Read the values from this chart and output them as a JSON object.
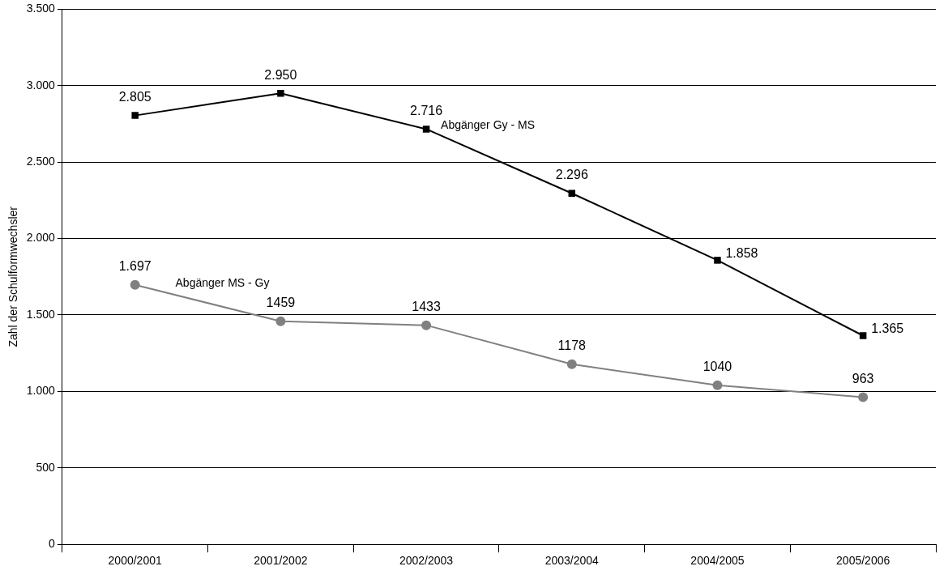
{
  "chart_data": {
    "type": "line",
    "ylabel": "Zahl der Schulformwechsler",
    "categories": [
      "2000/2001",
      "2001/2002",
      "2002/2003",
      "2003/2004",
      "2004/2005",
      "2005/2006"
    ],
    "series": [
      {
        "name": "Abgänger Gy - MS",
        "color": "#000000",
        "marker": "square",
        "values": [
          2805,
          2950,
          2716,
          2296,
          1858,
          1365
        ],
        "value_labels": [
          "2.805",
          "2.950",
          "2.716",
          "2.296",
          "1.858",
          "1.365"
        ]
      },
      {
        "name": "Abgänger MS - Gy",
        "color": "#808080",
        "marker": "circle",
        "values": [
          1697,
          1459,
          1433,
          1178,
          1040,
          963
        ],
        "value_labels": [
          "1.697",
          "1459",
          "1433",
          "1178",
          "1040",
          "963"
        ]
      }
    ],
    "ylim": [
      0,
      3500
    ],
    "yticks": [
      0,
      500,
      {
        "value": 1000,
        "label": "1.000"
      },
      {
        "value": 1500,
        "label": "1.500"
      },
      {
        "value": 2000,
        "label": "2.000"
      },
      {
        "value": 2500,
        "label": "2.500"
      },
      {
        "value": 3000,
        "label": "3.000"
      },
      {
        "value": 3500,
        "label": "3.500"
      }
    ],
    "grid": "y",
    "legend": false,
    "line_style": "solid"
  }
}
